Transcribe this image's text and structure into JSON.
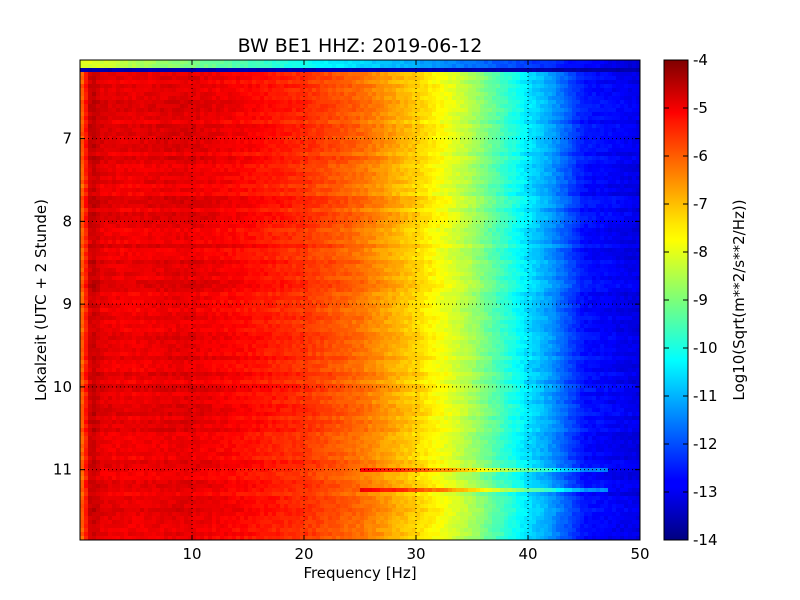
{
  "chart_data": {
    "type": "heatmap",
    "title": "BW BE1 HHZ: 2019-06-12",
    "xlabel": "Frequency [Hz]",
    "ylabel": "Lokalzeit (UTC + 2 Stunde)",
    "xlim": [
      0,
      50
    ],
    "ylim": [
      11.85,
      6.05
    ],
    "y_inverted": true,
    "x_ticks": [
      "10",
      "20",
      "30",
      "40",
      "50"
    ],
    "x_tick_values": [
      10,
      20,
      30,
      40,
      50
    ],
    "y_ticks": [
      "7",
      "8",
      "9",
      "10",
      "11"
    ],
    "y_tick_values": [
      7,
      8,
      9,
      10,
      11
    ],
    "grid": true,
    "colormap": "jet",
    "colorbar": {
      "label": "Log10(Sqrt(m**2/s**2/Hz))",
      "range": [
        -14,
        -4
      ],
      "ticks": [
        "-4",
        "-5",
        "-6",
        "-7",
        "-8",
        "-9",
        "-10",
        "-11",
        "-12",
        "-13",
        "-14"
      ],
      "tick_values": [
        -4,
        -5,
        -6,
        -7,
        -8,
        -9,
        -10,
        -11,
        -12,
        -13,
        -14
      ]
    },
    "spectrum_profile": {
      "frequency_hz": [
        0,
        1,
        2,
        5,
        8,
        10,
        15,
        20,
        25,
        30,
        33,
        35,
        40,
        42,
        45,
        50
      ],
      "log10_amplitude": [
        -6.5,
        -4.6,
        -5.0,
        -5.1,
        -5.0,
        -5.0,
        -5.3,
        -5.7,
        -6.3,
        -7.3,
        -8.0,
        -8.6,
        -10.5,
        -11.2,
        -12.6,
        -13.0
      ]
    },
    "anomalous_rows": [
      {
        "time": 6.1,
        "description": "top row, much weaker: ~-8 at low f, ~-13 at high f"
      },
      {
        "time": 6.17,
        "description": "very low level across all frequencies (~-13.5)"
      },
      {
        "time": 11.02,
        "description": "elevated high-frequency band"
      },
      {
        "time": 11.24,
        "description": "elevated high-frequency band"
      }
    ]
  }
}
